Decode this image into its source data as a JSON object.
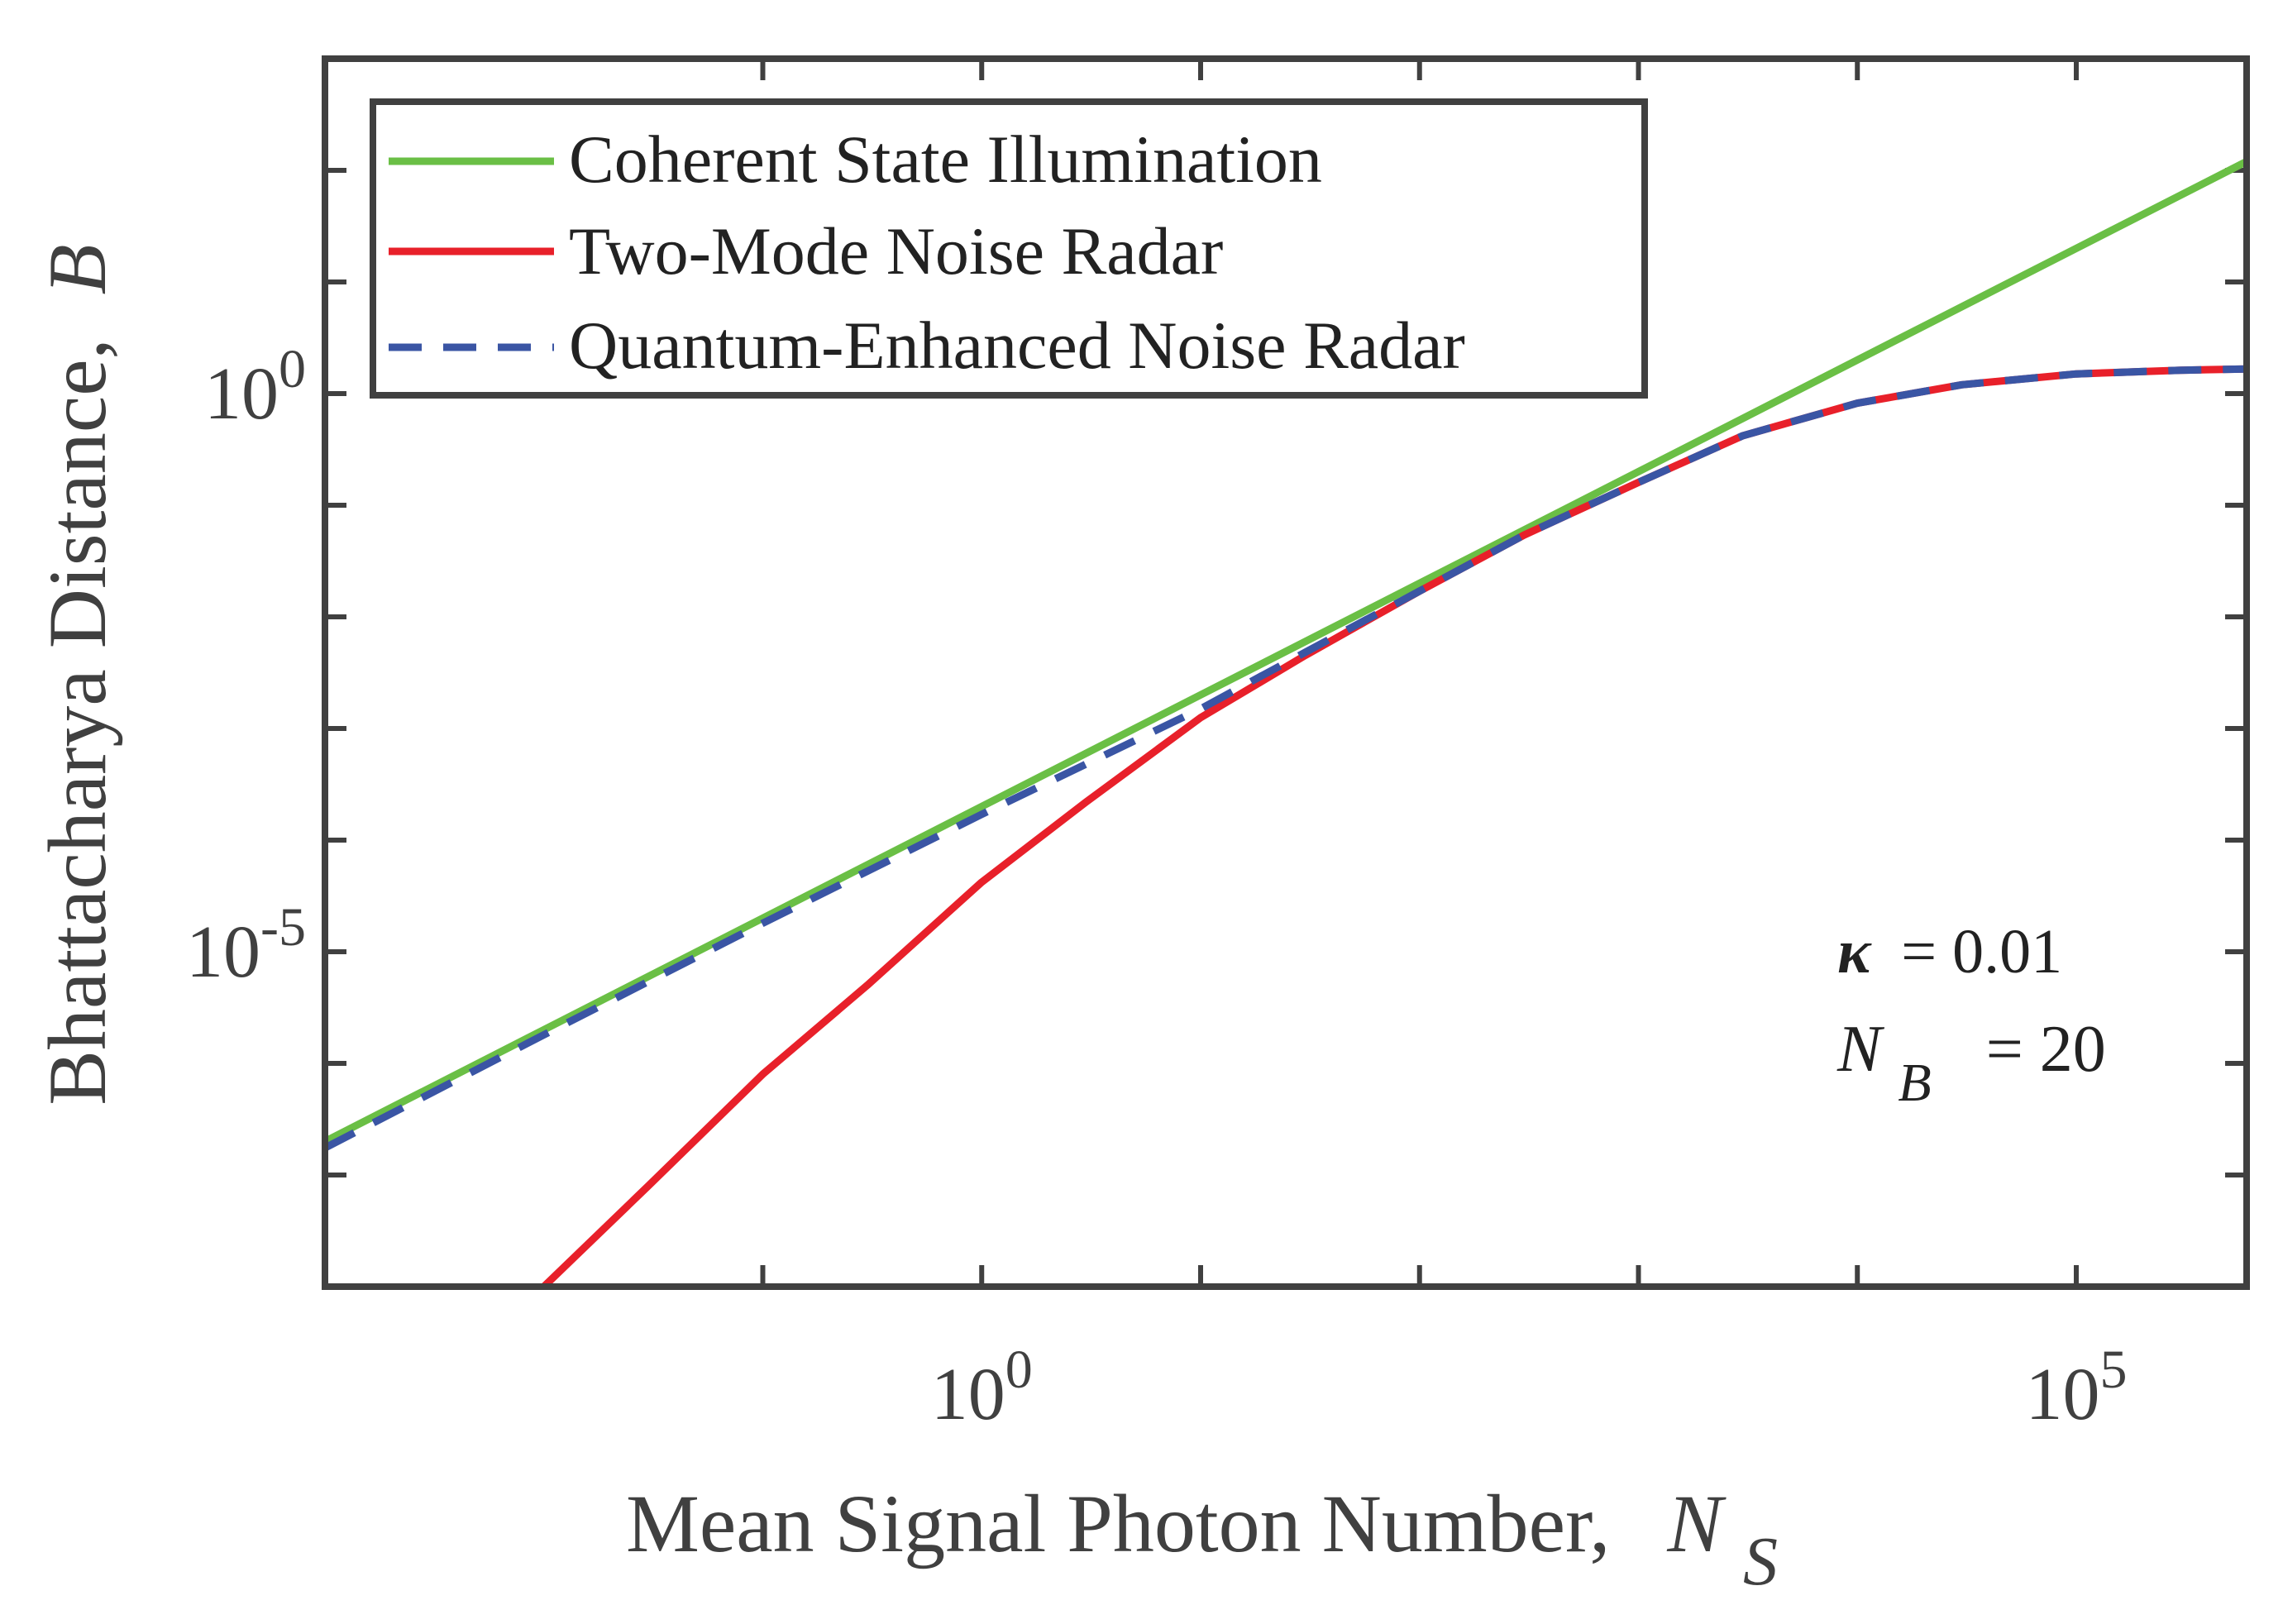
{
  "chart_data": {
    "type": "line",
    "xscale": "log",
    "yscale": "log",
    "xlim": [
      0.001,
      600000.0
    ],
    "ylim": [
      1e-08,
      1000.0
    ],
    "xlabel": "Mean Signal Photon Number,",
    "xlabel_symbol": "N",
    "xlabel_subscript": "S",
    "ylabel": "Bhattacharya Distance,",
    "ylabel_symbol": "B",
    "x_ticks": [
      {
        "value": 1,
        "base": "10",
        "exp": "0"
      },
      {
        "value": 100000,
        "base": "10",
        "exp": "5"
      }
    ],
    "y_ticks": [
      {
        "value": 1e-05,
        "base": "10",
        "exp": "-5"
      },
      {
        "value": 1,
        "base": "10",
        "exp": "0"
      }
    ],
    "x_minor_ticks": [
      0.1,
      10,
      100,
      1000,
      10000
    ],
    "y_minor_ticks": [
      1e-07,
      1e-06,
      0.0001,
      0.001,
      0.01,
      0.1,
      10,
      100
    ],
    "legend_position": "top-left",
    "series": [
      {
        "name": "Coherent State Illumination",
        "color": "#6abf45",
        "style": "solid",
        "x": [
          0.001,
          0.01,
          0.1,
          1,
          10,
          100,
          1000,
          10000,
          100000,
          600000
        ],
        "y": [
          2e-07,
          2e-06,
          2e-05,
          0.0002,
          0.002,
          0.02,
          0.2,
          2.0,
          20,
          120
        ]
      },
      {
        "name": "Two-Mode Noise Radar",
        "color": "#e8202a",
        "style": "solid",
        "x": [
          0.01,
          0.03,
          0.1,
          0.3,
          1,
          3,
          10,
          30,
          100,
          300,
          1000,
          3000,
          10000,
          30000,
          100000,
          300000,
          600000
        ],
        "y": [
          1e-08,
          8e-08,
          8e-07,
          5e-06,
          4.2e-05,
          0.00022,
          0.00125,
          0.0045,
          0.017,
          0.054,
          0.16,
          0.42,
          0.82,
          1.2,
          1.5,
          1.62,
          1.66
        ]
      },
      {
        "name": "Quantum-Enhanced Noise Radar",
        "color": "#3a55a4",
        "style": "dashed",
        "x": [
          0.001,
          0.01,
          0.1,
          1,
          3,
          10,
          30,
          100,
          300,
          1000,
          3000,
          10000,
          30000,
          100000,
          300000,
          600000
        ],
        "y": [
          1.75e-07,
          1.8e-06,
          1.8e-05,
          0.00017,
          0.00048,
          0.0015,
          0.0048,
          0.017,
          0.054,
          0.16,
          0.42,
          0.82,
          1.2,
          1.5,
          1.62,
          1.66
        ]
      }
    ],
    "annotations": [
      {
        "symbol": "κ",
        "text": "= 0.01"
      },
      {
        "symbol": "N",
        "subscript": "B",
        "text": "= 20"
      }
    ]
  }
}
